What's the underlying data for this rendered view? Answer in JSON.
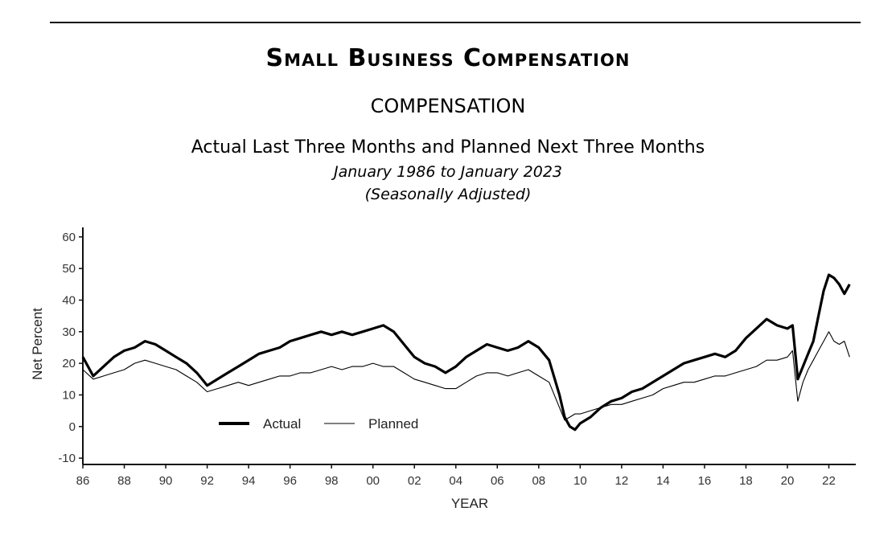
{
  "header": {
    "title": "Small Business Compensation",
    "section": "COMPENSATION",
    "subtitle": "Actual Last Three Months and Planned Next Three Months",
    "date_range": "January 1986 to January 2023",
    "note": "(Seasonally Adjusted)"
  },
  "chart_data": {
    "type": "line",
    "title": "COMPENSATION",
    "xlabel": "YEAR",
    "ylabel": "Net Percent",
    "xlim": [
      1986,
      2023.3
    ],
    "ylim": [
      -12,
      63
    ],
    "x_ticks": [
      1986,
      1988,
      1990,
      1992,
      1994,
      1996,
      1998,
      2000,
      2002,
      2004,
      2006,
      2008,
      2010,
      2012,
      2014,
      2016,
      2018,
      2020,
      2022
    ],
    "x_tick_labels": [
      "86",
      "88",
      "90",
      "92",
      "94",
      "96",
      "98",
      "00",
      "02",
      "04",
      "06",
      "08",
      "10",
      "12",
      "14",
      "16",
      "18",
      "20",
      "22"
    ],
    "y_ticks": [
      -10,
      0,
      10,
      20,
      30,
      40,
      50,
      60
    ],
    "y_tick_labels": [
      "-10",
      "0",
      "10",
      "20",
      "30",
      "40",
      "50",
      "60"
    ],
    "legend": {
      "position": "bottom-left",
      "entries": [
        "Actual",
        "Planned"
      ]
    },
    "series": [
      {
        "name": "Actual",
        "x": [
          1986.0,
          1986.5,
          1987.0,
          1987.5,
          1988.0,
          1988.5,
          1989.0,
          1989.5,
          1990.0,
          1990.5,
          1991.0,
          1991.5,
          1992.0,
          1992.5,
          1993.0,
          1993.5,
          1994.0,
          1994.5,
          1995.0,
          1995.5,
          1996.0,
          1996.5,
          1997.0,
          1997.5,
          1998.0,
          1998.5,
          1999.0,
          1999.5,
          2000.0,
          2000.5,
          2001.0,
          2001.5,
          2002.0,
          2002.5,
          2003.0,
          2003.5,
          2004.0,
          2004.5,
          2005.0,
          2005.5,
          2006.0,
          2006.5,
          2007.0,
          2007.5,
          2008.0,
          2008.5,
          2009.0,
          2009.25,
          2009.5,
          2009.75,
          2010.0,
          2010.5,
          2011.0,
          2011.5,
          2012.0,
          2012.5,
          2013.0,
          2013.5,
          2014.0,
          2014.5,
          2015.0,
          2015.5,
          2016.0,
          2016.5,
          2017.0,
          2017.5,
          2018.0,
          2018.5,
          2019.0,
          2019.5,
          2020.0,
          2020.25,
          2020.5,
          2020.75,
          2021.0,
          2021.25,
          2021.5,
          2021.75,
          2022.0,
          2022.25,
          2022.5,
          2022.75,
          2023.0
        ],
        "values": [
          22,
          16,
          19,
          22,
          24,
          25,
          27,
          26,
          24,
          22,
          20,
          17,
          13,
          15,
          17,
          19,
          21,
          23,
          24,
          25,
          27,
          28,
          29,
          30,
          29,
          30,
          29,
          30,
          31,
          32,
          30,
          26,
          22,
          20,
          19,
          17,
          19,
          22,
          24,
          26,
          25,
          24,
          25,
          27,
          25,
          21,
          10,
          3,
          0,
          -1,
          1,
          3,
          6,
          8,
          9,
          11,
          12,
          14,
          16,
          18,
          20,
          21,
          22,
          23,
          22,
          24,
          28,
          31,
          34,
          32,
          31,
          32,
          15,
          19,
          23,
          27,
          35,
          43,
          48,
          47,
          45,
          42,
          45
        ]
      },
      {
        "name": "Planned",
        "x": [
          1986.0,
          1986.5,
          1987.0,
          1987.5,
          1988.0,
          1988.5,
          1989.0,
          1989.5,
          1990.0,
          1990.5,
          1991.0,
          1991.5,
          1992.0,
          1992.5,
          1993.0,
          1993.5,
          1994.0,
          1994.5,
          1995.0,
          1995.5,
          1996.0,
          1996.5,
          1997.0,
          1997.5,
          1998.0,
          1998.5,
          1999.0,
          1999.5,
          2000.0,
          2000.5,
          2001.0,
          2001.5,
          2002.0,
          2002.5,
          2003.0,
          2003.5,
          2004.0,
          2004.5,
          2005.0,
          2005.5,
          2006.0,
          2006.5,
          2007.0,
          2007.5,
          2008.0,
          2008.5,
          2009.0,
          2009.25,
          2009.5,
          2009.75,
          2010.0,
          2010.5,
          2011.0,
          2011.5,
          2012.0,
          2012.5,
          2013.0,
          2013.5,
          2014.0,
          2014.5,
          2015.0,
          2015.5,
          2016.0,
          2016.5,
          2017.0,
          2017.5,
          2018.0,
          2018.5,
          2019.0,
          2019.5,
          2020.0,
          2020.25,
          2020.5,
          2020.75,
          2021.0,
          2021.25,
          2021.5,
          2021.75,
          2022.0,
          2022.25,
          2022.5,
          2022.75,
          2023.0
        ],
        "values": [
          18,
          15,
          16,
          17,
          18,
          20,
          21,
          20,
          19,
          18,
          16,
          14,
          11,
          12,
          13,
          14,
          13,
          14,
          15,
          16,
          16,
          17,
          17,
          18,
          19,
          18,
          19,
          19,
          20,
          19,
          19,
          17,
          15,
          14,
          13,
          12,
          12,
          14,
          16,
          17,
          17,
          16,
          17,
          18,
          16,
          14,
          6,
          2,
          3,
          4,
          4,
          5,
          6,
          7,
          7,
          8,
          9,
          10,
          12,
          13,
          14,
          14,
          15,
          16,
          16,
          17,
          18,
          19,
          21,
          21,
          22,
          24,
          8,
          14,
          18,
          21,
          24,
          27,
          30,
          27,
          26,
          27,
          22
        ]
      }
    ]
  }
}
